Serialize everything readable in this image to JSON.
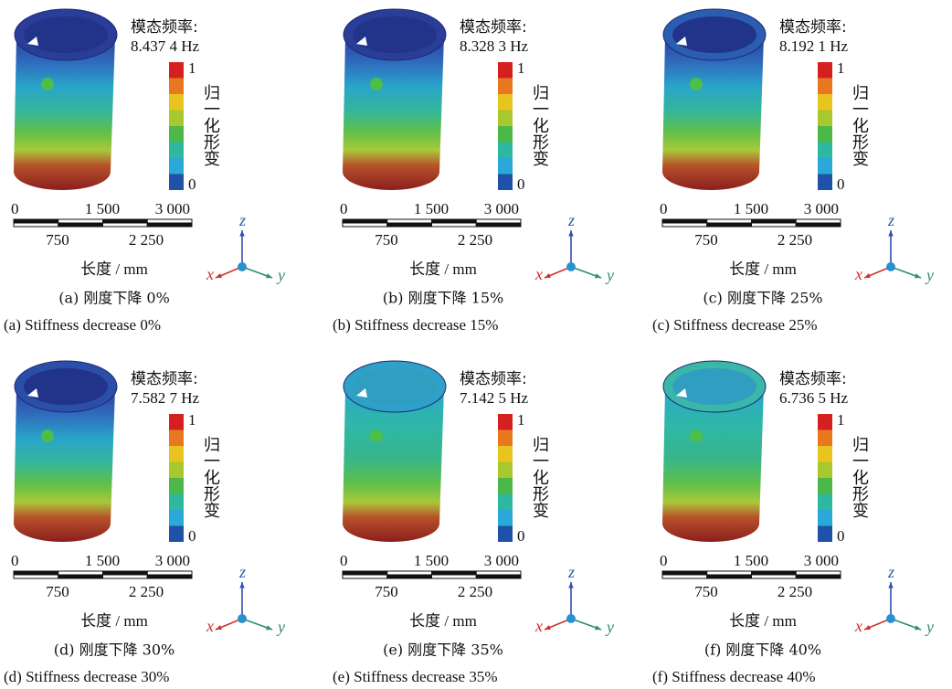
{
  "panels": [
    {
      "freq_label": "模态频率:",
      "freq": "8.437 4 Hz",
      "colorbar": {
        "max": "1",
        "min": "0",
        "title": "归一化形变"
      },
      "scale": {
        "top": [
          "0",
          "1 500",
          "3 000"
        ],
        "bottom": [
          "750",
          "2 250"
        ],
        "unit": "长度 / mm"
      },
      "axes": {
        "z": "z",
        "x": "x",
        "y": "y"
      },
      "caption_cn": "(a)  刚度下降 0%",
      "caption_en": "(a)  Stiffness decrease 0%"
    },
    {
      "freq_label": "模态频率:",
      "freq": "8.328 3 Hz",
      "colorbar": {
        "max": "1",
        "min": "0",
        "title": "归一化形变"
      },
      "scale": {
        "top": [
          "0",
          "1 500",
          "3 000"
        ],
        "bottom": [
          "750",
          "2 250"
        ],
        "unit": "长度 / mm"
      },
      "axes": {
        "z": "z",
        "x": "x",
        "y": "y"
      },
      "caption_cn": "(b)  刚度下降 15%",
      "caption_en": "(b)  Stiffness decrease 15%"
    },
    {
      "freq_label": "模态频率:",
      "freq": "8.192 1 Hz",
      "colorbar": {
        "max": "1",
        "min": "0",
        "title": "归一化形变"
      },
      "scale": {
        "top": [
          "0",
          "1 500",
          "3 000"
        ],
        "bottom": [
          "750",
          "2 250"
        ],
        "unit": "长度 / mm"
      },
      "axes": {
        "z": "z",
        "x": "x",
        "y": "y"
      },
      "caption_cn": "(c)  刚度下降 25%",
      "caption_en": "(c)  Stiffness decrease 25%"
    },
    {
      "freq_label": "模态频率:",
      "freq": "7.582 7 Hz",
      "colorbar": {
        "max": "1",
        "min": "0",
        "title": "归一化形变"
      },
      "scale": {
        "top": [
          "0",
          "1 500",
          "3 000"
        ],
        "bottom": [
          "750",
          "2 250"
        ],
        "unit": "长度 / mm"
      },
      "axes": {
        "z": "z",
        "x": "x",
        "y": "y"
      },
      "caption_cn": "(d)  刚度下降 30%",
      "caption_en": "(d)  Stiffness decrease 30%"
    },
    {
      "freq_label": "模态频率:",
      "freq": "7.142 5 Hz",
      "colorbar": {
        "max": "1",
        "min": "0",
        "title": "归一化形变"
      },
      "scale": {
        "top": [
          "0",
          "1 500",
          "3 000"
        ],
        "bottom": [
          "750",
          "2 250"
        ],
        "unit": "长度 / mm"
      },
      "axes": {
        "z": "z",
        "x": "x",
        "y": "y"
      },
      "caption_cn": "(e)  刚度下降 35%",
      "caption_en": "(e)  Stiffness decrease 35%"
    },
    {
      "freq_label": "模态频率:",
      "freq": "6.736 5 Hz",
      "colorbar": {
        "max": "1",
        "min": "0",
        "title": "归一化形变"
      },
      "scale": {
        "top": [
          "0",
          "1 500",
          "3 000"
        ],
        "bottom": [
          "750",
          "2 250"
        ],
        "unit": "长度 / mm"
      },
      "axes": {
        "z": "z",
        "x": "x",
        "y": "y"
      },
      "caption_cn": "(f)  刚度下降 40%",
      "caption_en": "(f)  Stiffness decrease 40%"
    }
  ]
}
